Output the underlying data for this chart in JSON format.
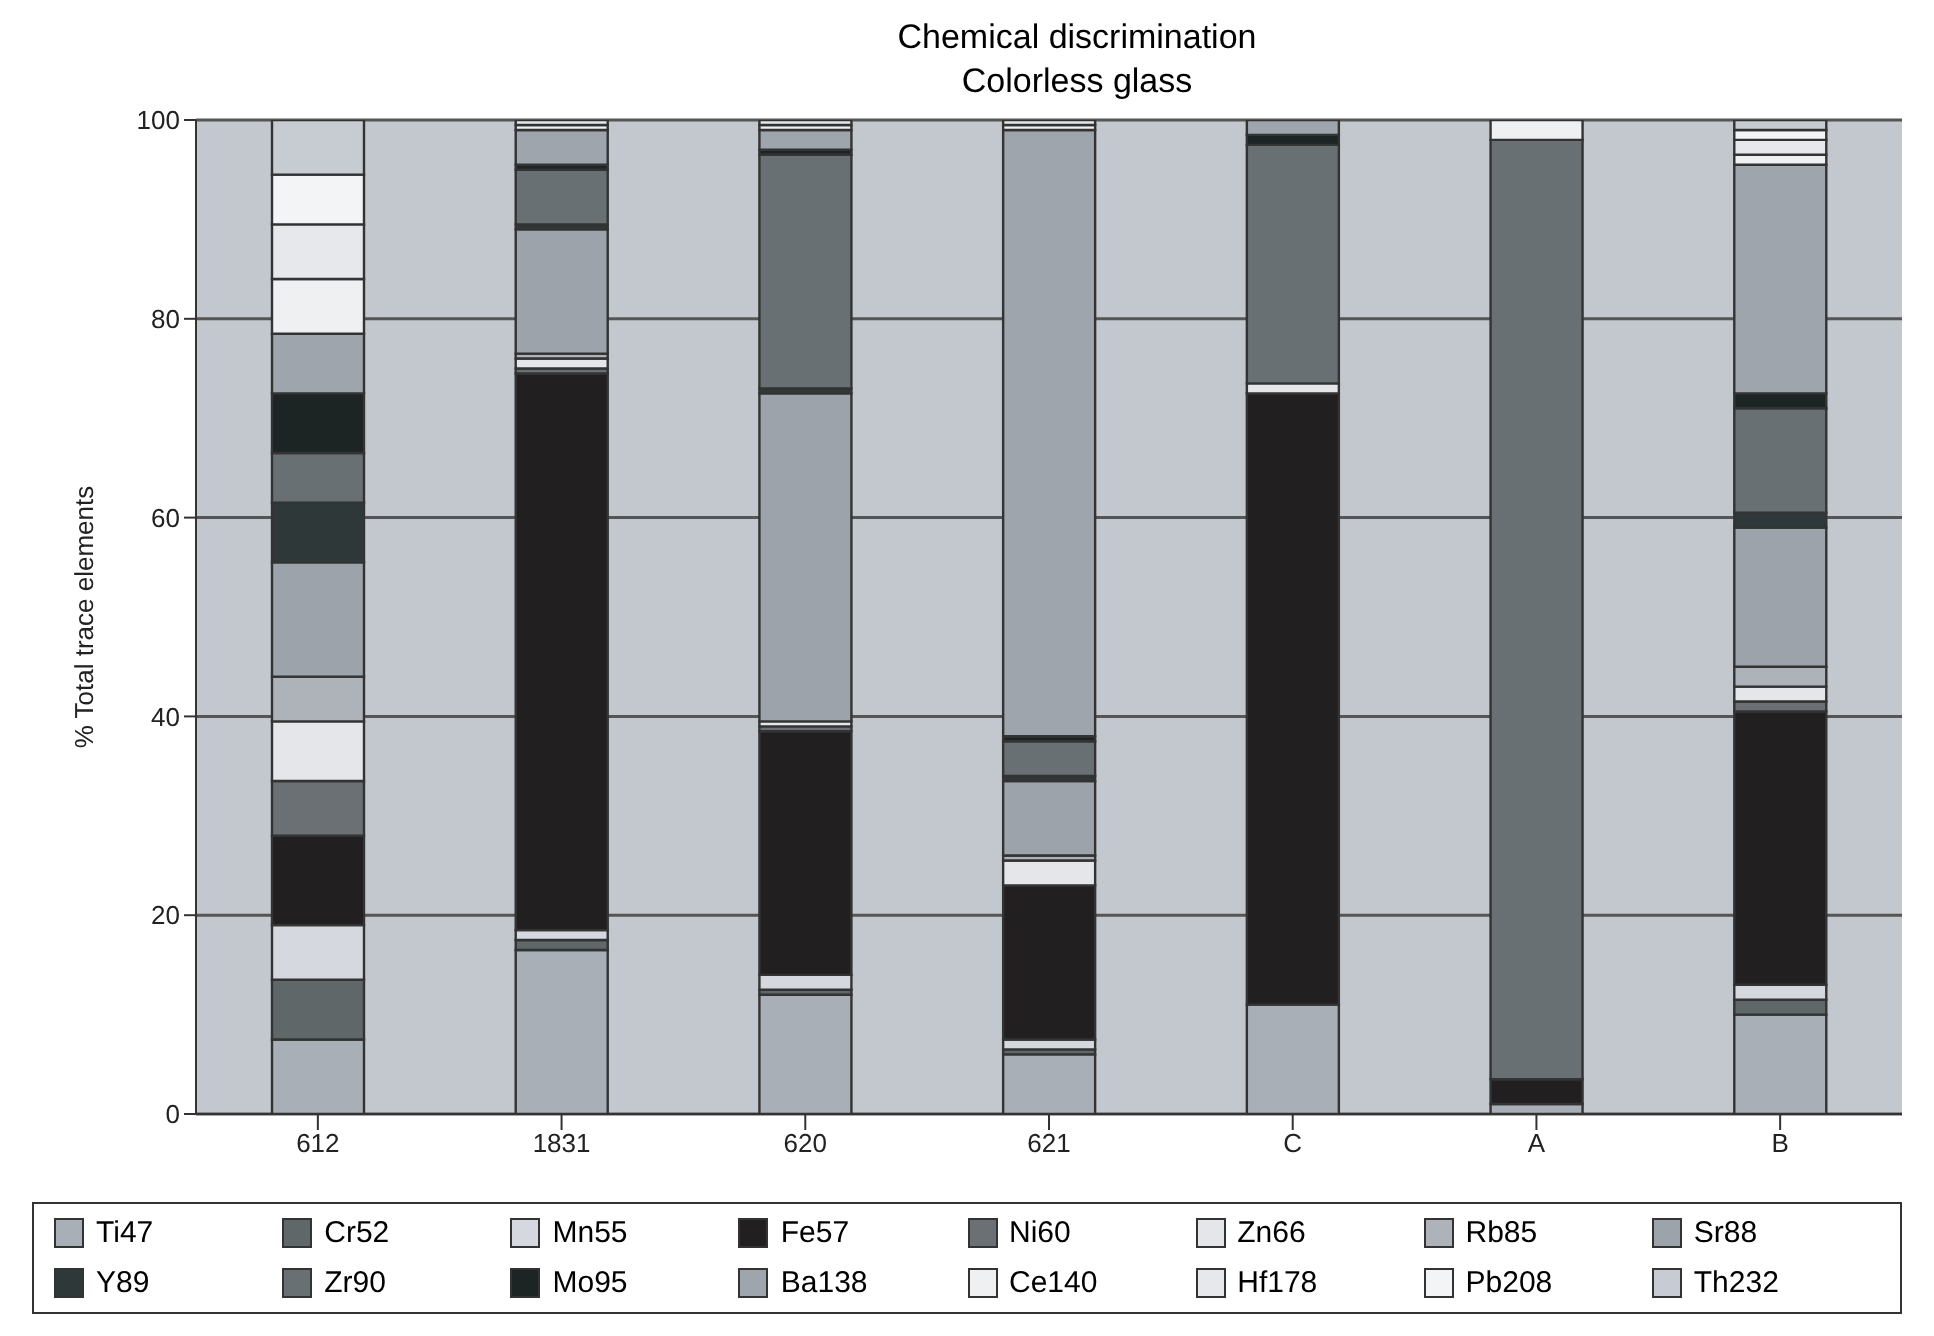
{
  "chart_data": {
    "type": "bar",
    "title": "Chemical discrimination",
    "subtitle": "Colorless glass",
    "ylabel": "% Total trace elements",
    "categories": [
      "612",
      "1831",
      "620",
      "621",
      "C",
      "A",
      "B"
    ],
    "stacked": true,
    "ylim": [
      0,
      100
    ],
    "yticks": [
      0,
      20,
      40,
      60,
      80,
      100
    ],
    "grid": "y",
    "legend": "bottom",
    "series": [
      {
        "name": "Ti47",
        "color": "#a9afb6",
        "values": [
          7.5,
          16.5,
          12,
          6,
          11,
          1,
          10
        ]
      },
      {
        "name": "Cr52",
        "color": "#5f6769",
        "values": [
          6,
          1,
          0.5,
          0.5,
          0,
          0,
          1.5
        ]
      },
      {
        "name": "Mn55",
        "color": "#d5d8de",
        "values": [
          5.5,
          1,
          1.5,
          1,
          0,
          0,
          1.5
        ]
      },
      {
        "name": "Fe57",
        "color": "#221f20",
        "values": [
          9,
          56,
          24.5,
          15.5,
          61.5,
          2.5,
          27.5
        ]
      },
      {
        "name": "Ni60",
        "color": "#6a7073",
        "values": [
          5.5,
          0.5,
          0.5,
          0,
          0,
          0,
          1
        ]
      },
      {
        "name": "Zn66",
        "color": "#e4e6ea",
        "values": [
          6,
          1,
          0.5,
          2.5,
          1,
          0,
          1.5
        ]
      },
      {
        "name": "Rb85",
        "color": "#aeb3ba",
        "values": [
          4.5,
          0.5,
          0,
          0.5,
          0,
          0,
          2
        ]
      },
      {
        "name": "Sr88",
        "color": "#9ca3aa",
        "values": [
          11.5,
          12.5,
          33,
          7.5,
          0,
          0,
          14
        ]
      },
      {
        "name": "Y89",
        "color": "#2f3839",
        "values": [
          6,
          0.5,
          0.5,
          0.5,
          0,
          0,
          1.5
        ]
      },
      {
        "name": "Zr90",
        "color": "#697073",
        "values": [
          5,
          5.5,
          23.5,
          3.5,
          24,
          94.5,
          10.5
        ]
      },
      {
        "name": "Mo95",
        "color": "#1d2524",
        "values": [
          6,
          0.5,
          0.5,
          0.5,
          1,
          0,
          1.5
        ]
      },
      {
        "name": "Ba138",
        "color": "#9ea5ac",
        "values": [
          6,
          3.5,
          2,
          61,
          1.5,
          0,
          23
        ]
      },
      {
        "name": "Ce140",
        "color": "#eff0f2",
        "values": [
          5.5,
          0.5,
          0.5,
          0.5,
          0,
          2,
          1
        ]
      },
      {
        "name": "Hf178",
        "color": "#e6e8eb",
        "values": [
          5.5,
          0.5,
          0.5,
          0.5,
          0,
          0,
          1.5
        ]
      },
      {
        "name": "Pb208",
        "color": "#f3f4f6",
        "values": [
          5,
          0,
          0,
          0,
          0,
          0,
          1
        ]
      },
      {
        "name": "Th232",
        "color": "#c7ccd2",
        "values": [
          5.5,
          0,
          0,
          0,
          0,
          0,
          1
        ]
      }
    ]
  }
}
